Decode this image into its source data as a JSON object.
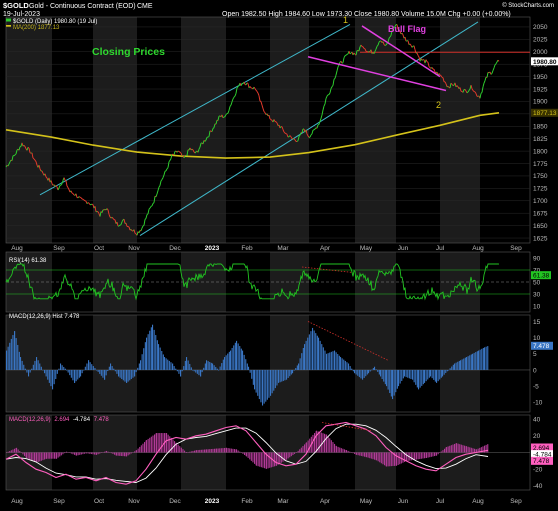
{
  "header": {
    "symbol": "$GOLD",
    "description": "Gold - Continuous Contract (EOD)",
    "exchange": "CME",
    "date": "19-Jul-2023",
    "ohlc_text": "Open 1982.50  High 1984.60  Low 1973.30  Close 1980.80  Volume 15.0M  Chg +0.00 (+0.00%)",
    "watermark": "© StockCharts.com",
    "legend_price": "$GOLD (Daily) 1980.80 (19 Jul)",
    "legend_ma": "MA(200) 1877.13"
  },
  "annotations": {
    "closing_prices": "Closing Prices",
    "bull_flag": "Bull Flag",
    "wave1": "1",
    "wave2": "2"
  },
  "colors": {
    "up": "#2ecc2e",
    "down": "#e0392b",
    "ma": "#d4c21a",
    "channel": "#3fb7c9",
    "flag": "#e040e0",
    "resistance": "#d0302a",
    "rsi": "#22c422",
    "macd_hist": "#3a76c4",
    "macd_line": "#ff5fbf",
    "signal_line": "#ffffff",
    "annotation_green": "#2fd82f"
  },
  "price_axis": {
    "ticks": [
      "2050",
      "2025",
      "2000",
      "1975",
      "1950",
      "1925",
      "1900",
      "1875",
      "1850",
      "1825",
      "1800",
      "1775",
      "1750",
      "1725",
      "1700",
      "1675",
      "1650",
      "1625"
    ],
    "last_label": "1980.80",
    "ma_label": "1877.13"
  },
  "rsi": {
    "legend": "RSI(14) 61.38",
    "ticks": [
      "90",
      "70",
      "50",
      "30",
      "10"
    ],
    "last_label": "61.38"
  },
  "macd_hist_panel": {
    "legend": "MACD(12,26,9) Hist 7.478",
    "ticks": [
      "15",
      "10",
      "5",
      "0",
      "-5",
      "-10"
    ],
    "last_label": "7.478"
  },
  "macd_panel": {
    "legend": "MACD(12,26,9) 2.694, -4.784, 7.478",
    "legend_parts": [
      "MACD(12,26,9)",
      "2.694",
      "-4.784",
      "7.478"
    ],
    "ticks": [
      "40",
      "20",
      "0",
      "-20",
      "-40"
    ],
    "last_labels": [
      "2.694",
      "-4.784",
      "7.478"
    ]
  },
  "x_axis": {
    "labels": [
      "Aug",
      "Sep",
      "Oct",
      "Nov",
      "Dec",
      "2023",
      "Feb",
      "Mar",
      "Apr",
      "May",
      "Jun",
      "Jul",
      "Aug",
      "Sep"
    ]
  },
  "chart_data": {
    "type": "line",
    "title": "$GOLD Gold - Continuous Contract (EOD) CME",
    "xlabel": "",
    "ylabel": "",
    "ylim": [
      1615,
      2070
    ],
    "x": [
      "2022-08",
      "2022-09",
      "2022-10",
      "2022-11",
      "2022-12",
      "2023-01",
      "2023-02",
      "2023-03",
      "2023-04",
      "2023-05",
      "2023-06",
      "2023-07"
    ],
    "series": [
      {
        "name": "$GOLD (Daily)",
        "values": [
          1785,
          1735,
          1668,
          1640,
          1780,
          1870,
          1840,
          1830,
          1990,
          2030,
          1935,
          1980.8
        ]
      },
      {
        "name": "MA(200)",
        "values": [
          1835,
          1825,
          1810,
          1795,
          1790,
          1785,
          1790,
          1800,
          1815,
          1835,
          1858,
          1877.13
        ]
      }
    ],
    "annotations": [
      "Closing Prices",
      "Bull Flag",
      "1",
      "2"
    ]
  }
}
